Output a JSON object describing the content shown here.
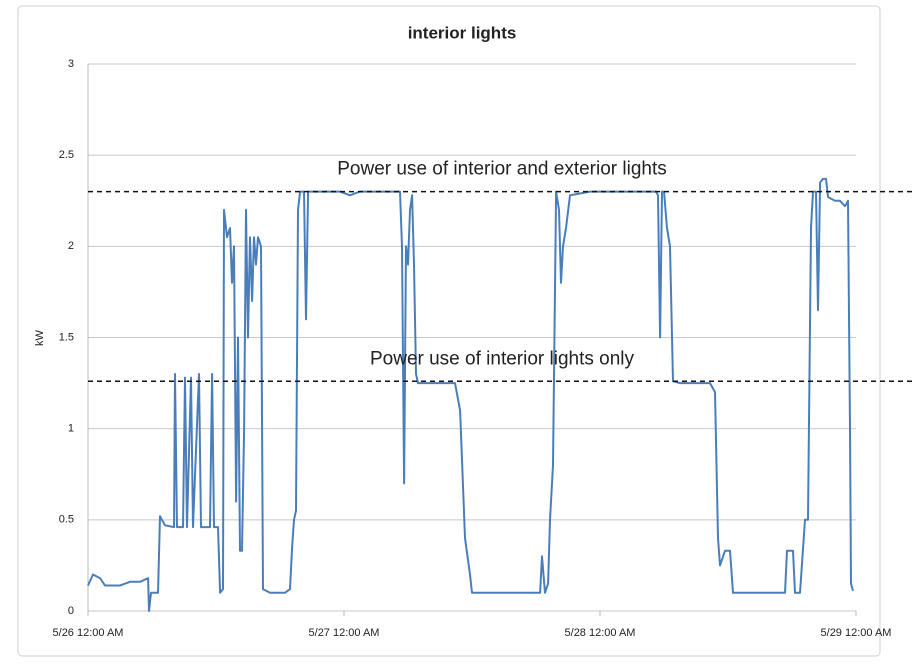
{
  "chart_data": {
    "type": "line",
    "title": "interior lights",
    "y_label": "kW",
    "x": [
      0,
      0.47,
      1.13,
      1.59,
      3.0,
      3.94,
      4.88,
      5.63,
      5.72,
      5.91,
      6.56,
      6.75,
      7.22,
      8.06,
      8.16,
      8.34,
      8.91,
      9.09,
      9.28,
      9.66,
      9.84,
      10.41,
      10.59,
      11.44,
      11.63,
      11.81,
      12.19,
      12.38,
      12.66,
      12.75,
      13.03,
      13.31,
      13.5,
      13.69,
      13.88,
      14.06,
      14.25,
      14.44,
      14.63,
      14.81,
      15.0,
      15.19,
      15.38,
      15.56,
      15.75,
      15.94,
      16.22,
      16.41,
      17.06,
      18.47,
      18.94,
      19.13,
      19.31,
      19.5,
      19.69,
      19.88,
      20.25,
      20.44,
      20.63,
      23.63,
      24.56,
      25.5,
      27.38,
      29.25,
      29.44,
      29.63,
      29.81,
      30.0,
      30.19,
      30.38,
      30.56,
      30.75,
      30.94,
      33.0,
      34.41,
      34.88,
      35.34,
      35.81,
      36.0,
      36.75,
      42.38,
      42.56,
      42.84,
      43.13,
      43.31,
      43.59,
      43.88,
      44.16,
      44.34,
      44.53,
      44.81,
      45.19,
      47.06,
      48.94,
      51.75,
      53.25,
      53.44,
      53.63,
      53.81,
      54.0,
      54.28,
      54.56,
      54.84,
      55.5,
      58.31,
      58.78,
      59.06,
      59.25,
      59.72,
      60.19,
      60.47,
      61.13,
      65.34,
      65.53,
      66.09,
      66.28,
      66.75,
      67.22,
      67.5,
      67.78,
      67.97,
      68.25,
      68.44,
      68.63,
      68.91,
      69.19,
      69.38,
      70.03,
      70.5,
      70.97,
      71.25,
      71.44,
      71.53,
      71.72
    ],
    "series": [
      {
        "name": "kW",
        "color": "#4a7ebb",
        "values": [
          0.14,
          0.2,
          0.18,
          0.14,
          0.14,
          0.16,
          0.16,
          0.18,
          0,
          0.1,
          0.1,
          0.52,
          0.47,
          0.46,
          1.3,
          0.46,
          0.46,
          1.28,
          0.46,
          1.28,
          0.46,
          1.3,
          0.46,
          0.46,
          1.3,
          0.46,
          0.46,
          0.1,
          0.12,
          2.2,
          2.05,
          2.1,
          1.8,
          2.0,
          0.6,
          1.5,
          0.33,
          0.33,
          1.0,
          2.2,
          1.5,
          2.05,
          1.7,
          2.05,
          1.9,
          2.05,
          2.0,
          0.12,
          0.1,
          0.1,
          0.12,
          0.35,
          0.5,
          0.55,
          2.2,
          2.3,
          2.3,
          1.6,
          2.3,
          2.3,
          2.28,
          2.3,
          2.3,
          2.3,
          2.0,
          0.7,
          2.0,
          1.9,
          2.2,
          2.28,
          1.9,
          1.3,
          1.25,
          1.25,
          1.25,
          1.1,
          0.4,
          0.2,
          0.1,
          0.1,
          0.1,
          0.3,
          0.1,
          0.15,
          0.5,
          0.8,
          2.3,
          2.2,
          1.8,
          2.0,
          2.1,
          2.28,
          2.3,
          2.3,
          2.3,
          2.3,
          2.28,
          1.5,
          2.3,
          2.3,
          2.1,
          2.0,
          1.26,
          1.25,
          1.25,
          1.2,
          0.4,
          0.25,
          0.33,
          0.33,
          0.1,
          0.1,
          0.1,
          0.33,
          0.33,
          0.1,
          0.1,
          0.5,
          0.5,
          2.1,
          2.3,
          2.3,
          1.65,
          2.35,
          2.37,
          2.37,
          2.27,
          2.25,
          2.25,
          2.22,
          2.25,
          1.0,
          0.15,
          0.11
        ]
      }
    ],
    "xlim": [
      0,
      72
    ],
    "xticks": [
      {
        "value": 0,
        "label": "5/26 12:00 AM"
      },
      {
        "value": 24,
        "label": "5/27 12:00 AM"
      },
      {
        "value": 48,
        "label": "5/28 12:00 AM"
      },
      {
        "value": 72,
        "label": "5/29 12:00 AM"
      }
    ],
    "ylim": [
      0,
      3
    ],
    "yticks": [
      0,
      0.5,
      1,
      1.5,
      2,
      2.5,
      3
    ],
    "grid": true,
    "annotations": [
      {
        "text": "Power use of interior and exterior lights",
        "value": 2.3
      },
      {
        "text": "Power use of interior lights only",
        "value": 1.26
      }
    ]
  }
}
